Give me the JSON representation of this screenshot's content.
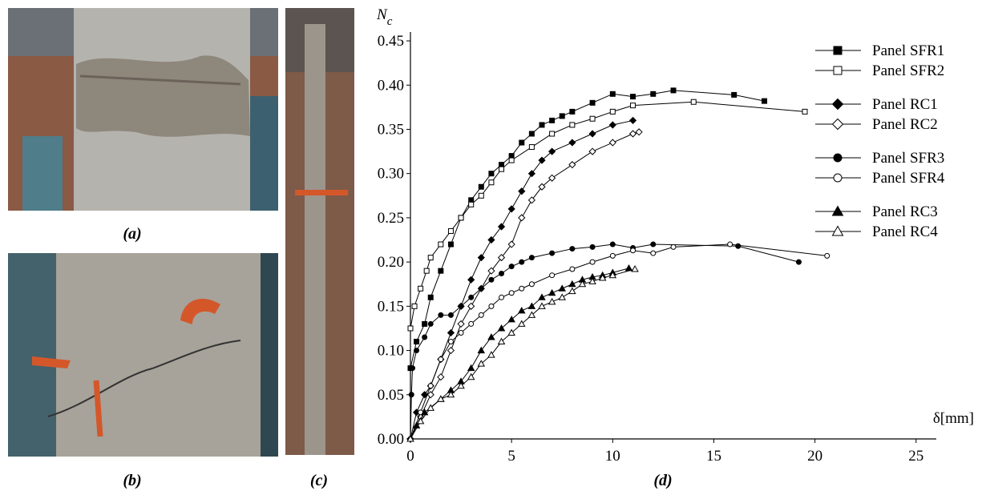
{
  "captions": {
    "a": "(a)",
    "b": "(b)",
    "c": "(c)",
    "d": "(d)"
  },
  "chart_data": {
    "type": "line",
    "ylabel": {
      "main": "N",
      "sub": "c"
    },
    "xlabel": "δ[mm]",
    "xlim": [
      0,
      26
    ],
    "ylim": [
      0,
      0.46
    ],
    "xticks": [
      0,
      5,
      10,
      15,
      20,
      25
    ],
    "yticks": [
      {
        "value": 0,
        "label": "0.00"
      },
      {
        "value": 0.05,
        "label": "0.05"
      },
      {
        "value": 0.1,
        "label": "0.10"
      },
      {
        "value": 0.15,
        "label": "0.15"
      },
      {
        "value": 0.2,
        "label": "0.20"
      },
      {
        "value": 0.25,
        "label": "0.25"
      },
      {
        "value": 0.3,
        "label": "0.30"
      },
      {
        "value": 0.35,
        "label": "0.35"
      },
      {
        "value": 0.4,
        "label": "0.40"
      },
      {
        "value": 0.45,
        "label": "0.45"
      }
    ],
    "series": [
      {
        "name": "Panel SFR1",
        "color": "#000000",
        "marker": "square",
        "filled": true,
        "x": [
          0,
          0.3,
          0.7,
          1,
          1.5,
          2,
          2.5,
          3,
          3.5,
          4,
          4.5,
          5,
          5.5,
          6,
          6.5,
          7,
          7.5,
          8,
          9,
          10,
          11,
          12,
          13,
          16,
          17.5
        ],
        "values": [
          0.08,
          0.11,
          0.13,
          0.16,
          0.19,
          0.22,
          0.25,
          0.27,
          0.285,
          0.3,
          0.31,
          0.32,
          0.335,
          0.345,
          0.355,
          0.36,
          0.365,
          0.37,
          0.38,
          0.39,
          0.387,
          0.39,
          0.394,
          0.389,
          0.382
        ]
      },
      {
        "name": "Panel SFR2",
        "color": "#000000",
        "marker": "square",
        "filled": false,
        "x": [
          0,
          0.2,
          0.5,
          0.8,
          1,
          1.5,
          2,
          2.5,
          3,
          3.5,
          4,
          4.5,
          5,
          6,
          7,
          8,
          9,
          10,
          11,
          14,
          19.5
        ],
        "values": [
          0.125,
          0.15,
          0.17,
          0.19,
          0.205,
          0.22,
          0.235,
          0.25,
          0.265,
          0.275,
          0.29,
          0.305,
          0.315,
          0.33,
          0.345,
          0.355,
          0.362,
          0.37,
          0.377,
          0.381,
          0.37
        ]
      },
      {
        "name": "Panel RC1",
        "color": "#000000",
        "marker": "diamond",
        "filled": true,
        "x": [
          0,
          0.3,
          0.7,
          1,
          1.5,
          2,
          2.5,
          3,
          3.5,
          4,
          4.5,
          5,
          5.5,
          6,
          6.5,
          7,
          8,
          9,
          10,
          11
        ],
        "values": [
          0,
          0.03,
          0.05,
          0.06,
          0.09,
          0.12,
          0.15,
          0.18,
          0.205,
          0.225,
          0.24,
          0.26,
          0.28,
          0.3,
          0.315,
          0.325,
          0.335,
          0.345,
          0.355,
          0.36
        ]
      },
      {
        "name": "Panel RC2",
        "color": "#000000",
        "marker": "diamond",
        "filled": false,
        "x": [
          0,
          0.5,
          1,
          1.5,
          2,
          2.5,
          3,
          3.5,
          4,
          4.5,
          5,
          5.5,
          6,
          6.5,
          7,
          8,
          9,
          10,
          11,
          11.3
        ],
        "values": [
          0,
          0.025,
          0.05,
          0.07,
          0.1,
          0.13,
          0.15,
          0.17,
          0.19,
          0.205,
          0.22,
          0.25,
          0.27,
          0.285,
          0.295,
          0.31,
          0.325,
          0.335,
          0.345,
          0.347
        ]
      },
      {
        "name": "Panel SFR3",
        "color": "#000000",
        "marker": "circle",
        "filled": true,
        "x": [
          0,
          0.05,
          0.1,
          0.3,
          0.7,
          1,
          1.5,
          2,
          2.5,
          3,
          3.5,
          4,
          4.5,
          5,
          5.5,
          6,
          7,
          8,
          9,
          10,
          11,
          12,
          16.2,
          19.2
        ],
        "values": [
          0,
          0.05,
          0.08,
          0.1,
          0.115,
          0.13,
          0.14,
          0.14,
          0.15,
          0.16,
          0.17,
          0.18,
          0.187,
          0.195,
          0.2,
          0.205,
          0.21,
          0.215,
          0.217,
          0.22,
          0.216,
          0.22,
          0.218,
          0.2
        ]
      },
      {
        "name": "Panel SFR4",
        "color": "#000000",
        "marker": "circle",
        "filled": false,
        "x": [
          0,
          0.5,
          1,
          1.5,
          2,
          2.5,
          3,
          3.5,
          4,
          4.5,
          5,
          5.5,
          6,
          7,
          8,
          9,
          10,
          11,
          12,
          13,
          15.8,
          20.6
        ],
        "values": [
          0,
          0.03,
          0.06,
          0.09,
          0.11,
          0.12,
          0.13,
          0.14,
          0.15,
          0.16,
          0.165,
          0.17,
          0.175,
          0.185,
          0.192,
          0.2,
          0.207,
          0.213,
          0.21,
          0.217,
          0.22,
          0.207
        ]
      },
      {
        "name": "Panel RC3",
        "color": "#000000",
        "marker": "triangle",
        "filled": true,
        "x": [
          0,
          0.3,
          0.7,
          1.5,
          2,
          2.5,
          3,
          3.5,
          4,
          4.5,
          5,
          5.5,
          6,
          6.5,
          7,
          7.5,
          8,
          8.5,
          9,
          9.5,
          10,
          10.8
        ],
        "values": [
          0,
          0.015,
          0.03,
          0.045,
          0.055,
          0.065,
          0.08,
          0.1,
          0.115,
          0.125,
          0.135,
          0.145,
          0.15,
          0.16,
          0.165,
          0.17,
          0.175,
          0.18,
          0.183,
          0.185,
          0.188,
          0.193
        ]
      },
      {
        "name": "Panel RC4",
        "color": "#000000",
        "marker": "triangle",
        "filled": false,
        "x": [
          0,
          0.5,
          1,
          1.5,
          2,
          2.5,
          3,
          3.5,
          4,
          4.5,
          5,
          5.5,
          6,
          6.5,
          7,
          7.5,
          8,
          8.5,
          9,
          9.5,
          10,
          11.1
        ],
        "values": [
          0,
          0.02,
          0.035,
          0.045,
          0.05,
          0.06,
          0.07,
          0.085,
          0.095,
          0.11,
          0.12,
          0.13,
          0.14,
          0.15,
          0.155,
          0.16,
          0.167,
          0.175,
          0.178,
          0.182,
          0.185,
          0.192
        ]
      }
    ]
  }
}
